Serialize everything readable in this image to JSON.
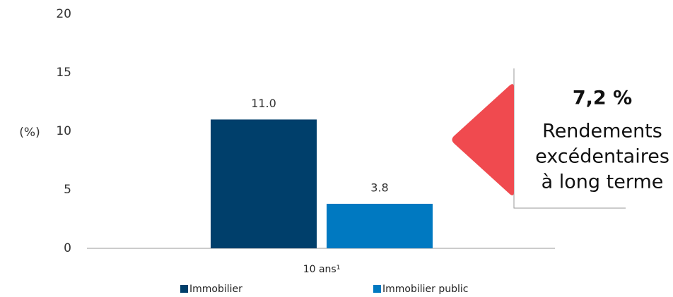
{
  "chart_data": {
    "type": "bar",
    "y_label": "(%)",
    "categories": [
      "10 ans¹"
    ],
    "series": [
      {
        "name": "Immobilier",
        "color": "#003f6b",
        "values": [
          11
        ],
        "value_labels": [
          "11.0"
        ]
      },
      {
        "name": "Immobilier public",
        "color": "#0079c1",
        "values": [
          3.8
        ],
        "value_labels": [
          "3.8"
        ]
      }
    ],
    "ylim": [
      0,
      20
    ],
    "yticks": [
      0,
      5,
      10,
      15,
      20
    ],
    "grid": false,
    "legend": "bottom",
    "annotation": {
      "title": "7,2 %",
      "lines": [
        "Rendements",
        "excédentaires",
        "à long terme"
      ],
      "color": "#f04a4f"
    }
  }
}
